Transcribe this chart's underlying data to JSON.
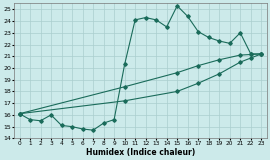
{
  "xlabel": "Humidex (Indice chaleur)",
  "bg_color": "#cceaea",
  "line_color": "#1a6b5a",
  "grid_color": "#aacece",
  "xlim": [
    -0.5,
    23.5
  ],
  "ylim": [
    14.0,
    25.5
  ],
  "xticks": [
    0,
    1,
    2,
    3,
    4,
    5,
    6,
    7,
    8,
    9,
    10,
    11,
    12,
    13,
    14,
    15,
    16,
    17,
    18,
    19,
    20,
    21,
    22,
    23
  ],
  "yticks": [
    14,
    15,
    16,
    17,
    18,
    19,
    20,
    21,
    22,
    23,
    24,
    25
  ],
  "line1_x": [
    0,
    1,
    2,
    3,
    4,
    5,
    6,
    7,
    8,
    9,
    10,
    11,
    12,
    13,
    14,
    15,
    16,
    17,
    18,
    19,
    20,
    21,
    22,
    23
  ],
  "line1_y": [
    16.1,
    15.6,
    15.5,
    16.0,
    15.1,
    15.0,
    14.8,
    14.7,
    15.3,
    15.6,
    20.3,
    24.1,
    24.3,
    24.1,
    23.5,
    25.3,
    24.4,
    23.1,
    22.6,
    22.3,
    22.1,
    23.0,
    21.2,
    21.2
  ],
  "line2_x": [
    0,
    23
  ],
  "line2_y": [
    16.1,
    21.2
  ],
  "line2_markers_x": [
    0,
    10,
    15,
    17,
    19,
    21,
    22,
    23
  ],
  "line2_markers_y": [
    16.1,
    18.4,
    19.6,
    20.2,
    20.7,
    21.1,
    21.15,
    21.2
  ],
  "line3_x": [
    0,
    23
  ],
  "line3_y": [
    16.1,
    21.2
  ],
  "line3_markers_x": [
    0,
    10,
    15,
    17,
    19,
    21,
    22,
    23
  ],
  "line3_markers_y": [
    16.1,
    17.2,
    18.0,
    18.7,
    19.5,
    20.5,
    20.85,
    21.2
  ]
}
